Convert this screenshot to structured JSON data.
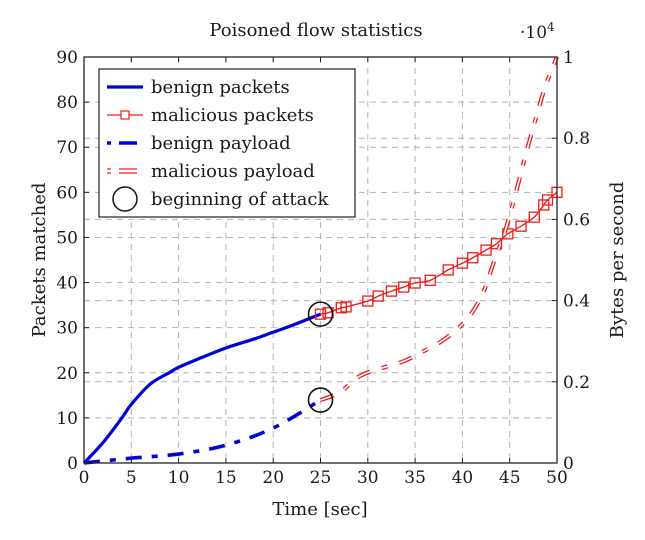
{
  "chart_data": {
    "type": "line",
    "title": "Poisoned flow statistics",
    "xlabel": "Time [sec]",
    "ylabel": "Packets matched",
    "y2label": "Bytes per second",
    "y2_multiplier_label": "·10^4",
    "xlim": [
      0,
      50
    ],
    "ylim": [
      0,
      90
    ],
    "y2lim": [
      0,
      1
    ],
    "xticks": [
      0,
      5,
      10,
      15,
      20,
      25,
      30,
      35,
      40,
      45,
      50
    ],
    "yticks": [
      0,
      10,
      20,
      30,
      40,
      50,
      60,
      70,
      80,
      90
    ],
    "y2ticks": [
      0,
      0.2,
      0.4,
      0.6,
      0.8,
      1
    ],
    "y2tick_labels": [
      "0",
      "0.2",
      "0.4",
      "0.6",
      "0.8",
      "1"
    ],
    "grid": true,
    "legend_position": "top-left",
    "series": [
      {
        "name": "benign packets",
        "axis": "left",
        "color": "#0000dd",
        "style": "solid-thick",
        "x": [
          0,
          2,
          4,
          5,
          7,
          9,
          10,
          12,
          15,
          18,
          20,
          22,
          25
        ],
        "y": [
          0,
          4.5,
          10,
          13,
          17.5,
          20,
          21.2,
          23,
          25.5,
          27.5,
          29,
          30.5,
          33
        ]
      },
      {
        "name": "malicious packets",
        "axis": "left",
        "color": "#ee1c1c",
        "style": "solid-square-markers",
        "x": [
          25,
          25.8,
          27.2,
          27.7,
          30,
          31.1,
          32.5,
          33.8,
          35,
          36.6,
          38.5,
          40,
          41.1,
          42.5,
          43.6,
          44.8,
          46.2,
          47.6,
          48.6,
          49,
          50
        ],
        "y": [
          33,
          33.3,
          34.4,
          34.6,
          35.9,
          37,
          38.1,
          39,
          39.9,
          40.5,
          42.8,
          44.3,
          45.5,
          47.2,
          48.6,
          50.8,
          52.5,
          54.5,
          57.2,
          58.3,
          60
        ]
      },
      {
        "name": "benign payload",
        "axis": "right",
        "color": "#0000dd",
        "style": "dashed-thick",
        "x": [
          0,
          5,
          10,
          15,
          20,
          25
        ],
        "y": [
          0,
          0.012,
          0.022,
          0.044,
          0.086,
          0.155
        ]
      },
      {
        "name": "malicious payload",
        "axis": "right",
        "color": "#ee1c1c",
        "style": "double-dashed",
        "x": [
          25,
          27.1,
          29.4,
          33.6,
          35.7,
          37.8,
          39.7,
          41,
          42.2,
          43.4,
          44.5,
          45.7,
          46.7,
          47.9,
          48.8,
          50
        ],
        "y": [
          0.155,
          0.175,
          0.217,
          0.249,
          0.273,
          0.3,
          0.335,
          0.37,
          0.42,
          0.5,
          0.57,
          0.67,
          0.76,
          0.86,
          0.93,
          1.0
        ]
      }
    ],
    "annotations": [
      {
        "name": "beginning of attack",
        "marker": "circle",
        "x": 25,
        "y": 33,
        "axis": "left"
      },
      {
        "name": "beginning of attack",
        "marker": "circle",
        "x": 25,
        "y": 0.155,
        "axis": "right"
      }
    ],
    "legend": [
      {
        "label": "benign packets",
        "key": "benign-packets"
      },
      {
        "label": "malicious packets",
        "key": "malicious-packets"
      },
      {
        "label": "benign payload",
        "key": "benign-payload"
      },
      {
        "label": "malicious payload",
        "key": "malicious-payload"
      },
      {
        "label": "beginning of attack",
        "key": "beginning-of-attack"
      }
    ]
  }
}
